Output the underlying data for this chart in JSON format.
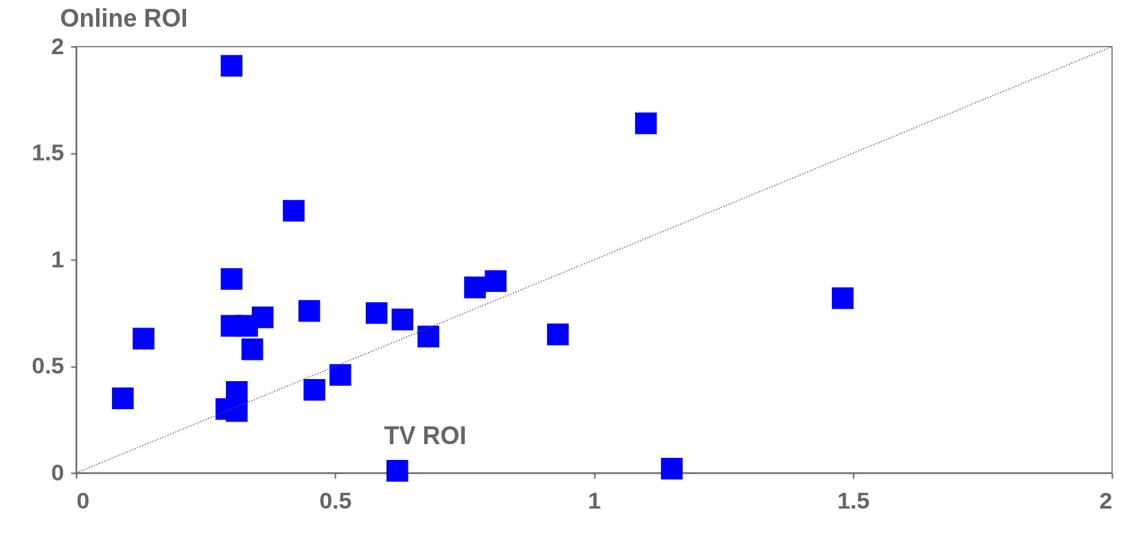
{
  "chart_data": {
    "type": "scatter",
    "xlabel": "TV ROI",
    "ylabel": "Online ROI",
    "xlim": [
      0,
      2
    ],
    "ylim": [
      0,
      2
    ],
    "xticks": [
      0,
      0.5,
      1,
      1.5,
      2
    ],
    "yticks": [
      0,
      0.5,
      1,
      1.5,
      2
    ],
    "series": [
      {
        "type": "scatter",
        "color": "#0000ff",
        "marker": "square",
        "x": [
          0.09,
          0.13,
          0.29,
          0.3,
          0.3,
          0.3,
          0.31,
          0.31,
          0.33,
          0.34,
          0.36,
          0.42,
          0.45,
          0.46,
          0.51,
          0.58,
          0.62,
          0.63,
          0.68,
          0.77,
          0.81,
          0.93,
          1.1,
          1.15,
          1.48
        ],
        "values": [
          0.35,
          0.63,
          0.3,
          0.91,
          0.69,
          1.91,
          0.38,
          0.29,
          0.69,
          0.58,
          0.73,
          1.23,
          0.76,
          0.39,
          0.46,
          0.75,
          0.01,
          0.72,
          0.64,
          0.87,
          0.9,
          0.65,
          1.64,
          0.02,
          0.82
        ]
      },
      {
        "type": "line",
        "color": "#555555",
        "line_style": "dotted",
        "x": [
          0,
          2
        ],
        "values": [
          0,
          2
        ]
      }
    ]
  }
}
